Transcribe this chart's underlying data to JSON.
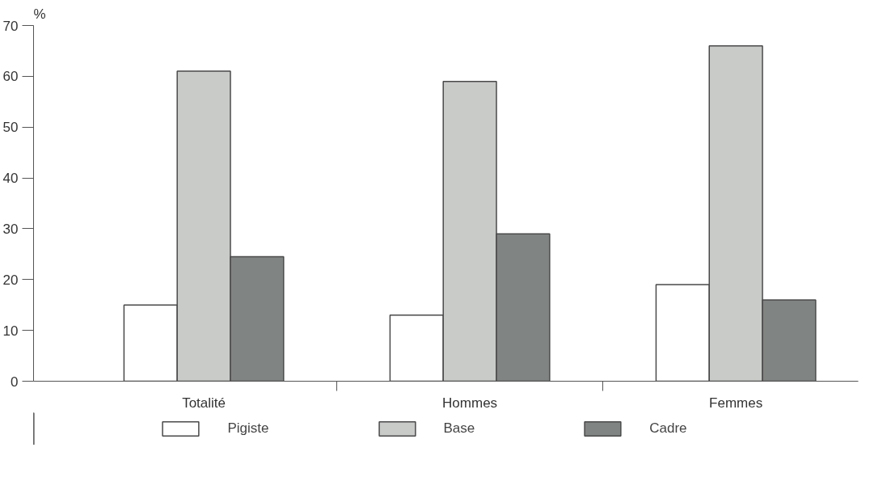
{
  "chart_data": {
    "type": "bar",
    "ylabel": "%",
    "categories": [
      "Totalité",
      "Hommes",
      "Femmes"
    ],
    "series": [
      {
        "name": "Pigiste",
        "color": "#ffffff",
        "values": [
          15,
          13,
          19
        ]
      },
      {
        "name": "Base",
        "color": "#c9cbc9",
        "values": [
          61,
          59,
          66
        ]
      },
      {
        "name": "Cadre",
        "color": "#808482",
        "values": [
          24.5,
          29,
          16
        ]
      }
    ],
    "ylim": [
      0,
      70
    ],
    "yticks": [
      0,
      10,
      20,
      30,
      40,
      50,
      60,
      70
    ],
    "grid": false,
    "legend": "bottom"
  }
}
